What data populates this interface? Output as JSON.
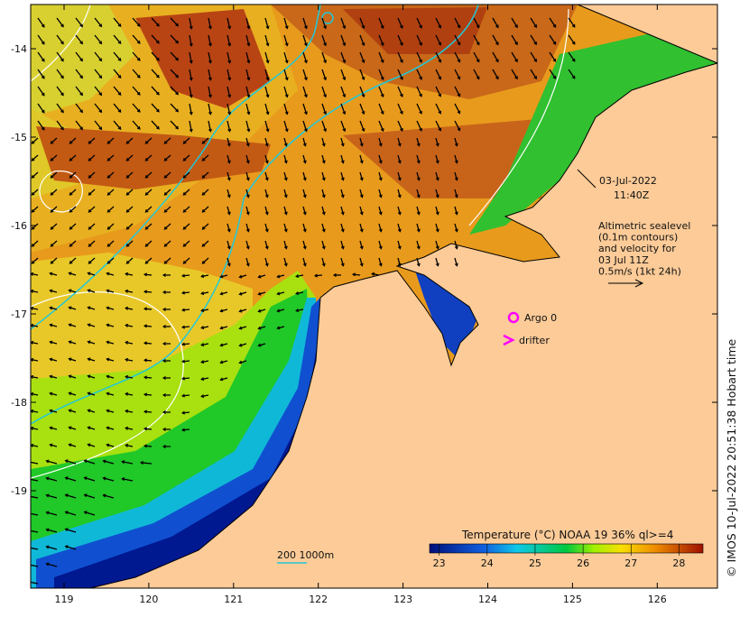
{
  "map": {
    "timestamp_date": "03-Jul-2022",
    "timestamp_time": "11:40Z",
    "legend_lines": [
      "Altimetric sealevel",
      "(0.1m contours)",
      "and velocity for",
      "03 Jul 11Z",
      "0.5m/s (1kt 24h)"
    ],
    "argo_label": "Argo 0",
    "drifter_label": "drifter",
    "scale_label": "200  1000m",
    "credit": "© IMOS 10-Jul-2022 20:51:38 Hobart time",
    "lon_ticks": [
      "119",
      "120",
      "121",
      "122",
      "123",
      "124",
      "125",
      "126"
    ],
    "lat_ticks": [
      "-14",
      "-15",
      "-16",
      "-17",
      "-18",
      "-19"
    ],
    "colorbar": {
      "title": "Temperature (°C) NOAA 19 36% ql>=4",
      "ticks": [
        "23",
        "24",
        "25",
        "26",
        "27",
        "28"
      ],
      "range": [
        22.8,
        28.5
      ]
    },
    "colors": {
      "land": "#fccb98",
      "contour": "#ffffff",
      "isobath": "#22c8d8",
      "argo": "#ff00ff"
    }
  }
}
